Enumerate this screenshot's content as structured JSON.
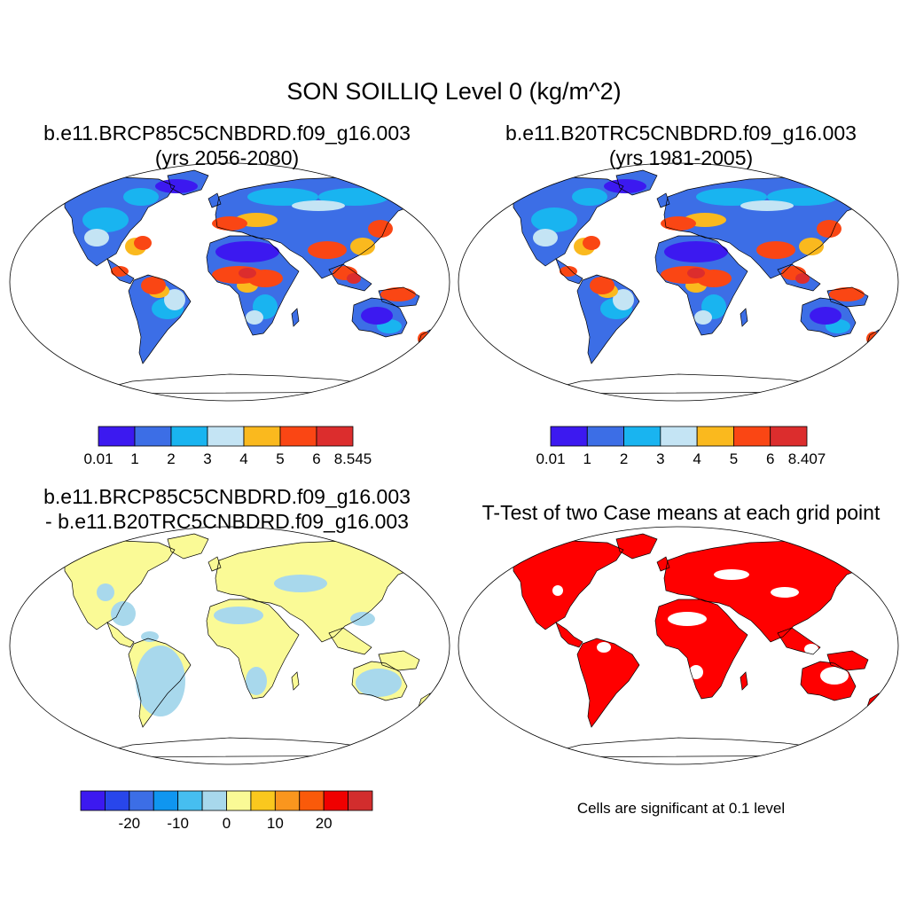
{
  "title": "SON SOILLIQ Level 0 (kg/m^2)",
  "panels": [
    {
      "id": "case1",
      "line1": "b.e11.BRCP85C5CNBDRD.f09_g16.003",
      "line2": "(yrs 2056-2080)",
      "kind": "field"
    },
    {
      "id": "case2",
      "line1": "b.e11.B20TRC5CNBDRD.f09_g16.003",
      "line2": "(yrs 1981-2005)",
      "kind": "field"
    },
    {
      "id": "diff",
      "line1": "b.e11.BRCP85C5CNBDRD.f09_g16.003",
      "line2": "- b.e11.B20TRC5CNBDRD.f09_g16.003",
      "kind": "diff"
    },
    {
      "id": "ttest",
      "line1": "T-Test of two Case means at each grid point",
      "line2": "",
      "kind": "ttest"
    }
  ],
  "colorbars": {
    "case1": {
      "colors": [
        "#3c19f0",
        "#3c6ee6",
        "#19b4f0",
        "#c4e4f4",
        "#fab91e",
        "#fa4614",
        "#dc2d2d"
      ],
      "labels": [
        "0.01",
        "1",
        "2",
        "3",
        "4",
        "5",
        "6",
        "8.545"
      ]
    },
    "case2": {
      "colors": [
        "#3c19f0",
        "#3c6ee6",
        "#19b4f0",
        "#c4e4f4",
        "#fab91e",
        "#fa4614",
        "#dc2d2d"
      ],
      "labels": [
        "0.01",
        "1",
        "2",
        "3",
        "4",
        "5",
        "6",
        "8.407"
      ]
    },
    "diff": {
      "colors": [
        "#3c19f0",
        "#2846eb",
        "#3c6ee6",
        "#0f96f0",
        "#46bef0",
        "#a8d8ec",
        "#fafa96",
        "#fac81e",
        "#fa961e",
        "#fa5a0a",
        "#f00000",
        "#d22d2d"
      ],
      "labels": [
        "-20",
        "-10",
        "0",
        "10",
        "20"
      ]
    }
  },
  "significance_note": "Cells are significant at 0.1 level"
}
